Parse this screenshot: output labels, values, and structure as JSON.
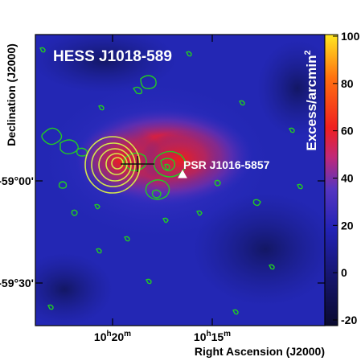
{
  "chart_data": {
    "type": "heatmap",
    "title": "HESS J1018-589",
    "xlabel": "Right Ascension (J2000)",
    "ylabel": "Declination (J2000)",
    "x_ticks": [
      {
        "label": "10h20m",
        "hours": "10",
        "minutes": "20",
        "value_deg": 155.0
      },
      {
        "label": "10h15m",
        "hours": "10",
        "minutes": "15",
        "value_deg": 153.75
      }
    ],
    "y_ticks": [
      {
        "label": "-59°00'",
        "value_deg": -59.0
      },
      {
        "label": "-59°30'",
        "value_deg": -59.5
      }
    ],
    "colorbar": {
      "label": "Excess/arcmin",
      "label_superscript": "2",
      "range": [
        -20,
        100
      ],
      "ticks": [
        -20,
        0,
        20,
        40,
        60,
        80,
        100
      ]
    },
    "annotations": [
      {
        "label": "PSR J1016-5857",
        "marker": "triangle",
        "color": "#ffffff"
      }
    ],
    "contours": [
      {
        "color": "#d6e84a",
        "description": "yellow contours at east edge"
      },
      {
        "color": "#22cc22",
        "description": "green contours"
      }
    ],
    "colors": {
      "background_blue": "#2a2cc0",
      "peak_red": "#f01a1a",
      "title_text": "#ffffff"
    }
  }
}
